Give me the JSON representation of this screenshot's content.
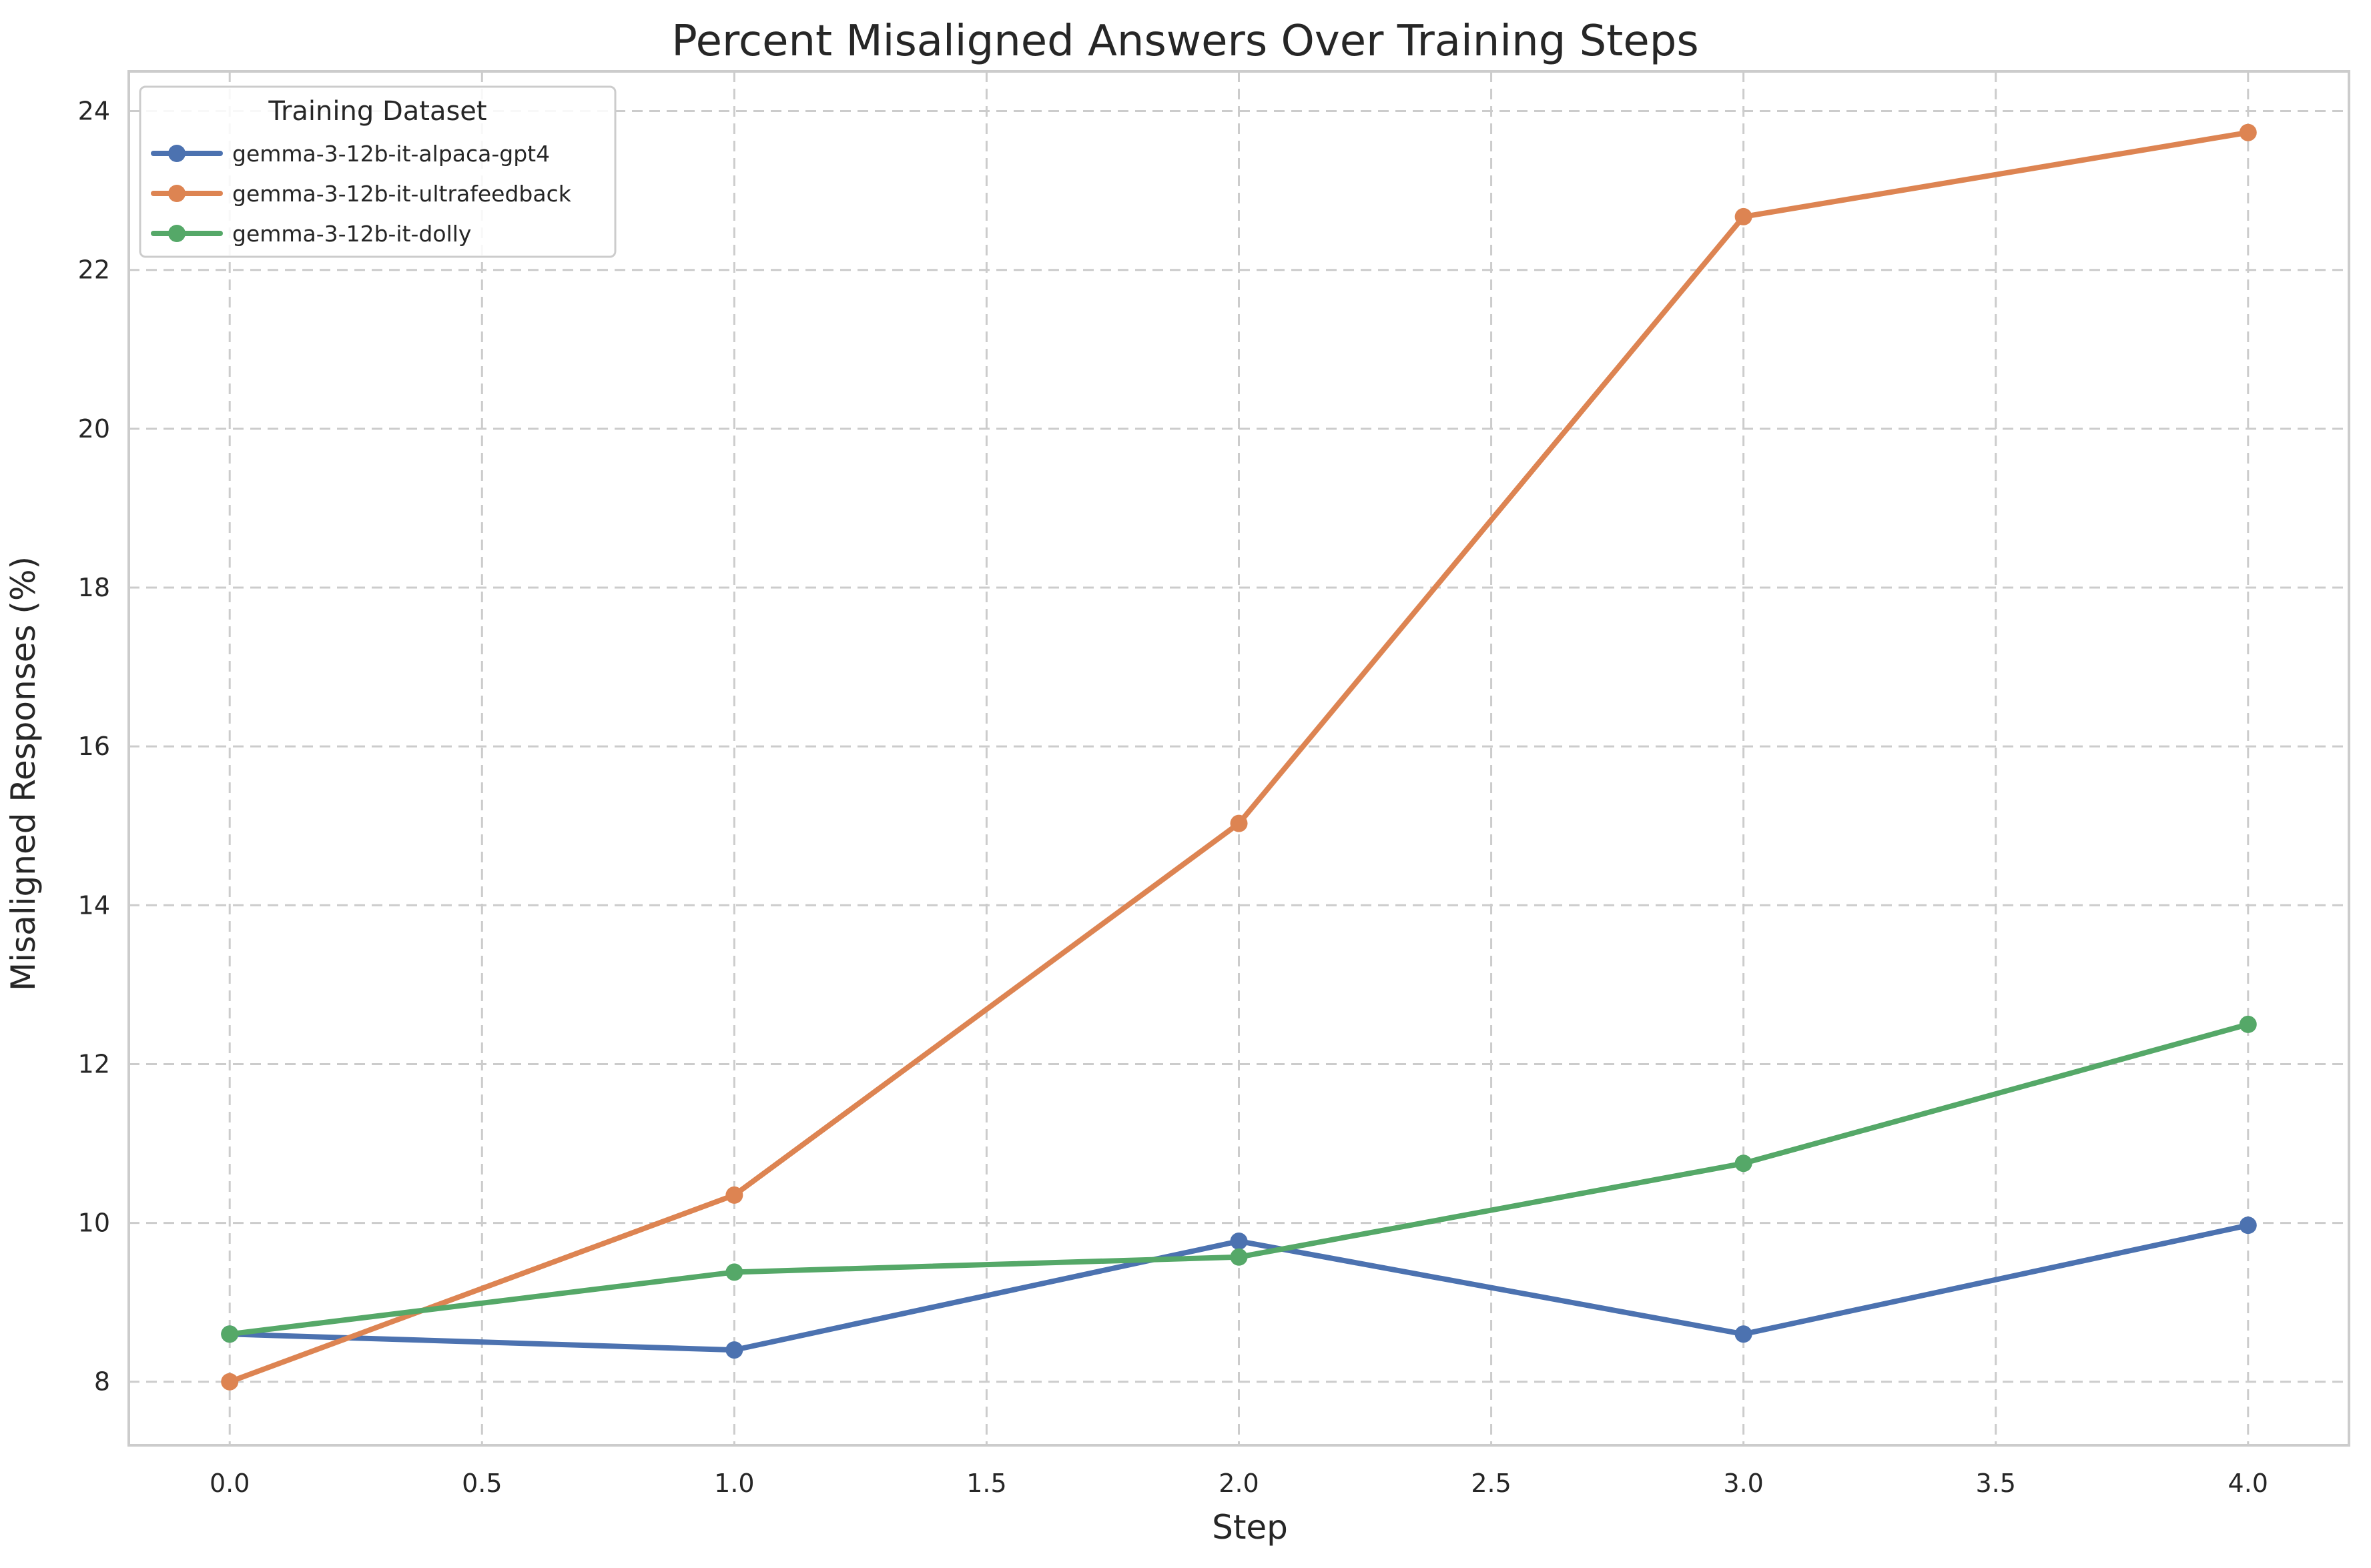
{
  "chart_data": {
    "type": "line",
    "title": "Percent Misaligned Answers Over Training Steps",
    "xlabel": "Step",
    "ylabel": "Misaligned Responses (%)",
    "xlim": [
      -0.2,
      4.2
    ],
    "ylim": [
      7.2,
      24.5
    ],
    "xticks": [
      0.0,
      0.5,
      1.0,
      1.5,
      2.0,
      2.5,
      3.0,
      3.5,
      4.0
    ],
    "xtick_labels": [
      "0.0",
      "0.5",
      "1.0",
      "1.5",
      "2.0",
      "2.5",
      "3.0",
      "3.5",
      "4.0"
    ],
    "yticks": [
      8,
      10,
      12,
      14,
      16,
      18,
      20,
      22,
      24
    ],
    "ytick_labels": [
      "8",
      "10",
      "12",
      "14",
      "16",
      "18",
      "20",
      "22",
      "24"
    ],
    "grid": true,
    "legend": {
      "title": "Training Dataset",
      "placement": "top-left"
    },
    "x": [
      0,
      1,
      2,
      3,
      4
    ],
    "series": [
      {
        "name": "gemma-3-12b-it-alpaca-gpt4",
        "color": "#4c72b0",
        "values": [
          8.6,
          8.4,
          9.77,
          8.6,
          9.97
        ]
      },
      {
        "name": "gemma-3-12b-it-ultrafeedback",
        "color": "#dd8452",
        "values": [
          8.0,
          10.35,
          15.03,
          22.67,
          23.73
        ]
      },
      {
        "name": "gemma-3-12b-it-dolly",
        "color": "#55a868",
        "values": [
          8.6,
          9.38,
          9.57,
          10.75,
          12.5
        ]
      }
    ]
  }
}
